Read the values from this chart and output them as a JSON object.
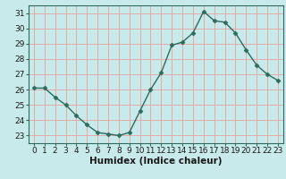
{
  "x": [
    0,
    1,
    2,
    3,
    4,
    5,
    6,
    7,
    8,
    9,
    10,
    11,
    12,
    13,
    14,
    15,
    16,
    17,
    18,
    19,
    20,
    21,
    22,
    23
  ],
  "y": [
    26.1,
    26.1,
    25.5,
    25.0,
    24.3,
    23.7,
    23.2,
    23.1,
    23.0,
    23.2,
    24.6,
    26.0,
    27.1,
    28.9,
    29.1,
    29.7,
    31.1,
    30.5,
    30.4,
    29.7,
    28.6,
    27.6,
    27.0,
    26.6
  ],
  "xlabel": "Humidex (Indice chaleur)",
  "xlim": [
    -0.5,
    23.5
  ],
  "ylim": [
    22.5,
    31.5
  ],
  "yticks": [
    23,
    24,
    25,
    26,
    27,
    28,
    29,
    30,
    31
  ],
  "xticks": [
    0,
    1,
    2,
    3,
    4,
    5,
    6,
    7,
    8,
    9,
    10,
    11,
    12,
    13,
    14,
    15,
    16,
    17,
    18,
    19,
    20,
    21,
    22,
    23
  ],
  "line_color": "#2e6b5e",
  "marker": "D",
  "marker_size": 2.5,
  "bg_color": "#c8eaea",
  "grid_color": "#f0b0b0",
  "label_fontsize": 7.5,
  "tick_fontsize": 6.5
}
